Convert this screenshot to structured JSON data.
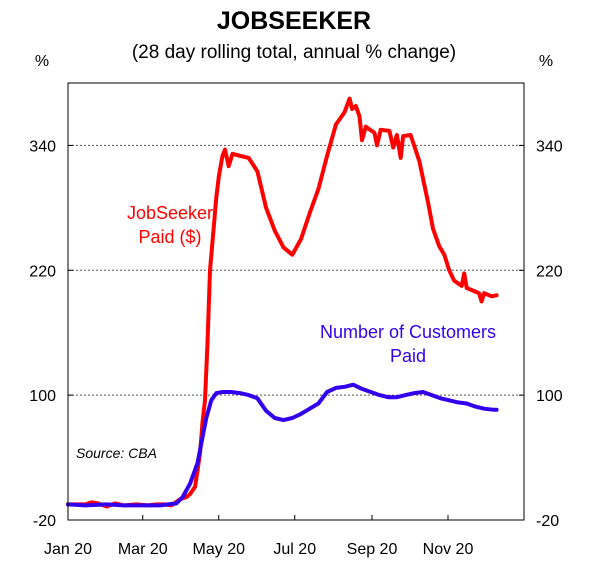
{
  "chart_data": {
    "type": "line",
    "title": "JOBSEEKER",
    "subtitle": "(28 day rolling total, annual % change)",
    "unit_left": "%",
    "unit_right": "%",
    "source": "Source: CBA",
    "ylim": [
      -20,
      400
    ],
    "yticks": [
      -20,
      100,
      220,
      340
    ],
    "xlim": [
      "2020-01-01",
      "2021-01-01"
    ],
    "xticks": [
      {
        "date": "2020-01-01",
        "label": "Jan 20"
      },
      {
        "date": "2020-03-01",
        "label": "Mar 20"
      },
      {
        "date": "2020-05-01",
        "label": "May 20"
      },
      {
        "date": "2020-07-01",
        "label": "Jul 20"
      },
      {
        "date": "2020-09-01",
        "label": "Sep 20"
      },
      {
        "date": "2020-11-01",
        "label": "Nov 20"
      }
    ],
    "gridlines": "horizontal dotted",
    "series": [
      {
        "name": "JobSeeker Paid ($)",
        "label_lines": [
          "JobSeeker",
          "Paid ($)"
        ],
        "color": "#ff0000",
        "points": [
          [
            "2020-01-01",
            -5
          ],
          [
            "2020-01-10",
            -5
          ],
          [
            "2020-01-15",
            -5
          ],
          [
            "2020-01-20",
            -3
          ],
          [
            "2020-01-25",
            -4
          ],
          [
            "2020-02-01",
            -7
          ],
          [
            "2020-02-08",
            -4
          ],
          [
            "2020-02-15",
            -6
          ],
          [
            "2020-02-25",
            -5
          ],
          [
            "2020-03-05",
            -6
          ],
          [
            "2020-03-12",
            -5
          ],
          [
            "2020-03-18",
            -5
          ],
          [
            "2020-03-24",
            -6
          ],
          [
            "2020-03-31",
            0
          ],
          [
            "2020-04-05",
            2
          ],
          [
            "2020-04-08",
            5
          ],
          [
            "2020-04-12",
            12
          ],
          [
            "2020-04-16",
            45
          ],
          [
            "2020-04-18",
            75
          ],
          [
            "2020-04-20",
            95
          ],
          [
            "2020-04-22",
            150
          ],
          [
            "2020-04-24",
            220
          ],
          [
            "2020-04-27",
            262
          ],
          [
            "2020-04-29",
            290
          ],
          [
            "2020-05-01",
            310
          ],
          [
            "2020-05-04",
            330
          ],
          [
            "2020-05-06",
            336
          ],
          [
            "2020-05-09",
            320
          ],
          [
            "2020-05-12",
            332
          ],
          [
            "2020-05-18",
            330
          ],
          [
            "2020-05-25",
            328
          ],
          [
            "2020-06-01",
            315
          ],
          [
            "2020-06-08",
            280
          ],
          [
            "2020-06-15",
            258
          ],
          [
            "2020-06-22",
            242
          ],
          [
            "2020-06-29",
            235
          ],
          [
            "2020-07-06",
            250
          ],
          [
            "2020-07-13",
            275
          ],
          [
            "2020-07-20",
            298
          ],
          [
            "2020-07-27",
            330
          ],
          [
            "2020-08-03",
            360
          ],
          [
            "2020-08-10",
            372
          ],
          [
            "2020-08-14",
            385
          ],
          [
            "2020-08-16",
            375
          ],
          [
            "2020-08-19",
            378
          ],
          [
            "2020-08-22",
            368
          ],
          [
            "2020-08-24",
            345
          ],
          [
            "2020-08-27",
            358
          ],
          [
            "2020-09-03",
            352
          ],
          [
            "2020-09-05",
            340
          ],
          [
            "2020-09-08",
            355
          ],
          [
            "2020-09-15",
            354
          ],
          [
            "2020-09-18",
            338
          ],
          [
            "2020-09-21",
            350
          ],
          [
            "2020-09-24",
            328
          ],
          [
            "2020-09-26",
            349
          ],
          [
            "2020-10-02",
            350
          ],
          [
            "2020-10-09",
            325
          ],
          [
            "2020-10-16",
            285
          ],
          [
            "2020-10-20",
            260
          ],
          [
            "2020-10-25",
            243
          ],
          [
            "2020-10-29",
            235
          ],
          [
            "2020-11-02",
            220
          ],
          [
            "2020-11-06",
            210
          ],
          [
            "2020-11-12",
            205
          ],
          [
            "2020-11-14",
            217
          ],
          [
            "2020-11-16",
            203
          ],
          [
            "2020-11-22",
            200
          ],
          [
            "2020-11-26",
            198
          ],
          [
            "2020-11-28",
            190
          ],
          [
            "2020-11-30",
            198
          ],
          [
            "2020-12-06",
            195
          ],
          [
            "2020-12-10",
            196
          ]
        ]
      },
      {
        "name": "Number of Customers Paid",
        "label_lines": [
          "Number of Customers",
          "Paid"
        ],
        "color": "#3300ee",
        "points": [
          [
            "2020-01-01",
            -5
          ],
          [
            "2020-01-15",
            -6
          ],
          [
            "2020-02-01",
            -5
          ],
          [
            "2020-02-15",
            -6
          ],
          [
            "2020-03-01",
            -6
          ],
          [
            "2020-03-15",
            -6
          ],
          [
            "2020-03-28",
            -4
          ],
          [
            "2020-04-02",
            2
          ],
          [
            "2020-04-08",
            15
          ],
          [
            "2020-04-14",
            35
          ],
          [
            "2020-04-18",
            60
          ],
          [
            "2020-04-21",
            78
          ],
          [
            "2020-04-25",
            95
          ],
          [
            "2020-04-29",
            102
          ],
          [
            "2020-05-04",
            103
          ],
          [
            "2020-05-11",
            103
          ],
          [
            "2020-05-18",
            102
          ],
          [
            "2020-05-25",
            100
          ],
          [
            "2020-06-01",
            97
          ],
          [
            "2020-06-08",
            85
          ],
          [
            "2020-06-15",
            78
          ],
          [
            "2020-06-22",
            76
          ],
          [
            "2020-06-29",
            78
          ],
          [
            "2020-07-06",
            82
          ],
          [
            "2020-07-13",
            87
          ],
          [
            "2020-07-20",
            92
          ],
          [
            "2020-07-27",
            103
          ],
          [
            "2020-08-03",
            107
          ],
          [
            "2020-08-10",
            108
          ],
          [
            "2020-08-17",
            110
          ],
          [
            "2020-08-24",
            106
          ],
          [
            "2020-08-31",
            103
          ],
          [
            "2020-09-07",
            100
          ],
          [
            "2020-09-14",
            98
          ],
          [
            "2020-09-21",
            98
          ],
          [
            "2020-09-28",
            100
          ],
          [
            "2020-10-05",
            102
          ],
          [
            "2020-10-12",
            103
          ],
          [
            "2020-10-19",
            100
          ],
          [
            "2020-10-26",
            97
          ],
          [
            "2020-11-02",
            95
          ],
          [
            "2020-11-09",
            93
          ],
          [
            "2020-11-16",
            92
          ],
          [
            "2020-11-23",
            89
          ],
          [
            "2020-11-30",
            87
          ],
          [
            "2020-12-07",
            86
          ],
          [
            "2020-12-10",
            86
          ]
        ]
      }
    ]
  }
}
